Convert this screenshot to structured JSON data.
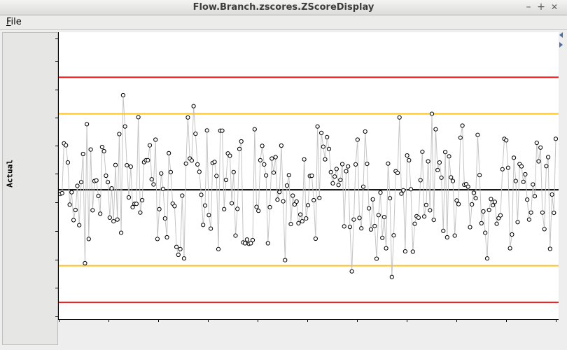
{
  "window": {
    "title": "Flow.Branch.zscores.ZScoreDisplay",
    "min_glyph": "–",
    "max_glyph": "+",
    "close_glyph": "✕"
  },
  "menu": {
    "file": "File"
  },
  "chart_data": {
    "type": "line",
    "ylabel": "Actual",
    "ylim": [
      -4.6,
      5.6
    ],
    "reference_lines": [
      {
        "y": 4,
        "color": "#ee1111"
      },
      {
        "y": 2.7,
        "color": "#ffc21a"
      },
      {
        "y": 0,
        "color": "#000000"
      },
      {
        "y": -2.7,
        "color": "#ffc21a"
      },
      {
        "y": -4,
        "color": "#ee1111"
      }
    ],
    "series": [
      {
        "color": "#c4c4c4",
        "values": [
          -0.15,
          -0.12,
          1.65,
          1.58,
          0.97,
          -0.53,
          -0.09,
          -1.08,
          -0.72,
          0.14,
          -1.26,
          0.27,
          1.27,
          -2.61,
          2.33,
          -1.75,
          1.43,
          -0.73,
          0.31,
          0.33,
          -0.22,
          -0.85,
          1.52,
          1.37,
          0.5,
          0.27,
          -0.99,
          0.05,
          -1.12,
          0.88,
          -1.06,
          1.98,
          -1.53,
          3.36,
          2.25,
          0.87,
          -0.27,
          0.82,
          -0.62,
          -0.5,
          -0.5,
          2.58,
          -0.81,
          -0.37,
          0.98,
          1.05,
          1.05,
          1.58,
          0.37,
          0.19,
          1.78,
          -1.75,
          -0.69,
          0.58,
          0.03,
          -1.02,
          -1.69,
          1.3,
          0.63,
          -0.49,
          -0.58,
          -2.03,
          -2.31,
          -2.11,
          -0.21,
          -2.44,
          0.93,
          2.57,
          1.11,
          1.04,
          2.97,
          1.99,
          0.9,
          0.64,
          -0.18,
          -1.25,
          -0.56,
          2.11,
          -0.9,
          -1.38,
          0.95,
          0.99,
          0.49,
          -2.11,
          2.1,
          2.1,
          -0.69,
          0.35,
          1.29,
          1.21,
          -0.48,
          0.63,
          -1.63,
          -0.68,
          1.45,
          1.72,
          -1.87,
          -1.9,
          -1.77,
          -1.92,
          -1.9,
          -1.79,
          2.15,
          -0.61,
          -0.75,
          1.05,
          1.56,
          0.9,
          0.51,
          -1.9,
          -0.62,
          1.11,
          0.61,
          1.16,
          -0.35,
          -0.08,
          1.57,
          -0.41,
          -2.5,
          0.15,
          0.52,
          -1.22,
          -0.21,
          -0.52,
          -0.42,
          -1.19,
          -0.88,
          -1.12,
          1.08,
          -1.02,
          -0.55,
          0.49,
          0.5,
          -0.37,
          -1.74,
          2.25,
          -0.29,
          2.02,
          1.53,
          1.08,
          1.87,
          1.45,
          0.63,
          0.23,
          0.47,
          0.74,
          0.17,
          0.35,
          0.91,
          -1.3,
          0.66,
          0.83,
          -1.32,
          -2.9,
          -1.06,
          0.9,
          1.78,
          -1.0,
          -1.37,
          0.11,
          2.07,
          0.92,
          -0.66,
          -1.41,
          -0.34,
          -1.29,
          -2.45,
          -0.9,
          -0.1,
          -1.71,
          -0.97,
          -2.08,
          0.93,
          -0.3,
          -3.1,
          -1.62,
          0.66,
          0.6,
          2.57,
          -0.14,
          -0.02,
          -2.19,
          1.22,
          1.05,
          0.02,
          -2.2,
          -1.21,
          -0.94,
          -0.99,
          0.34,
          1.35,
          -0.95,
          -0.54,
          1.01,
          -0.73,
          2.7,
          -1.07,
          2.15,
          0.7,
          0.97,
          0.43,
          -1.46,
          1.34,
          -1.69,
          1.19,
          0.44,
          0.31,
          -1.63,
          -0.38,
          -0.51,
          1.85,
          2.28,
          0.18,
          0.2,
          0.11,
          -1.33,
          -0.52,
          -0.11,
          -0.3,
          1.95,
          0.52,
          -1.19,
          -0.77,
          -1.53,
          -2.44,
          -0.72,
          -0.33,
          -0.55,
          -0.43,
          -1.21,
          -1.01,
          -0.91,
          0.73,
          1.81,
          1.76,
          0.78,
          -2.08,
          -1.59,
          1.14,
          0.31,
          -1.15,
          0.91,
          0.83,
          0.28,
          0.55,
          -0.35,
          -1.06,
          -0.81,
          0.19,
          -0.23,
          1.67,
          1.01,
          1.5,
          -0.81,
          -1.4,
          0.84,
          1.16,
          -2.1,
          -0.17,
          -0.82,
          1.81
        ]
      }
    ]
  }
}
